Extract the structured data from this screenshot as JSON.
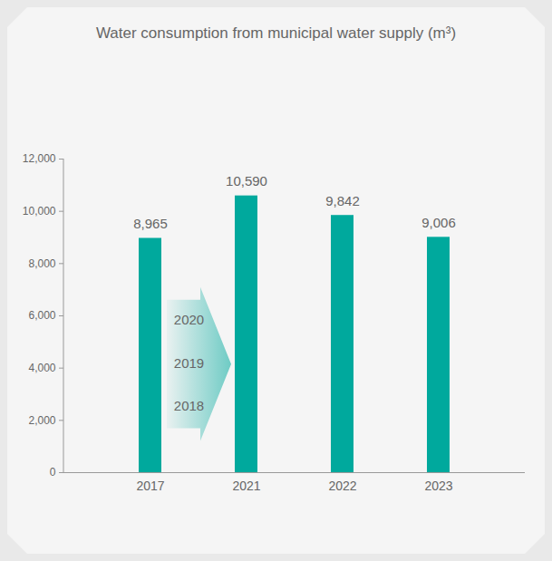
{
  "chart_data": {
    "type": "bar",
    "title": "Water consumption from municipal water supply (m³)",
    "categories": [
      "2017",
      "2021",
      "2022",
      "2023"
    ],
    "values": [
      8965,
      10590,
      9842,
      9006
    ],
    "value_labels": [
      "8,965",
      "10,590",
      "9,842",
      "9,006"
    ],
    "data_labels": true,
    "color": "#00a99d",
    "ylim": [
      0,
      12000
    ],
    "yticks": [
      0,
      {
        "value": 2000,
        "label": "2,000"
      },
      {
        "value": 4000,
        "label": "4,000"
      },
      {
        "value": 6000,
        "label": "6,000"
      },
      {
        "value": 8000,
        "label": "8,000"
      },
      {
        "value": 10000,
        "label": "10,000"
      },
      {
        "value": 12000,
        "label": "12,000"
      }
    ],
    "grid": false,
    "annotations": [
      "2020",
      "2019",
      "2018"
    ]
  }
}
